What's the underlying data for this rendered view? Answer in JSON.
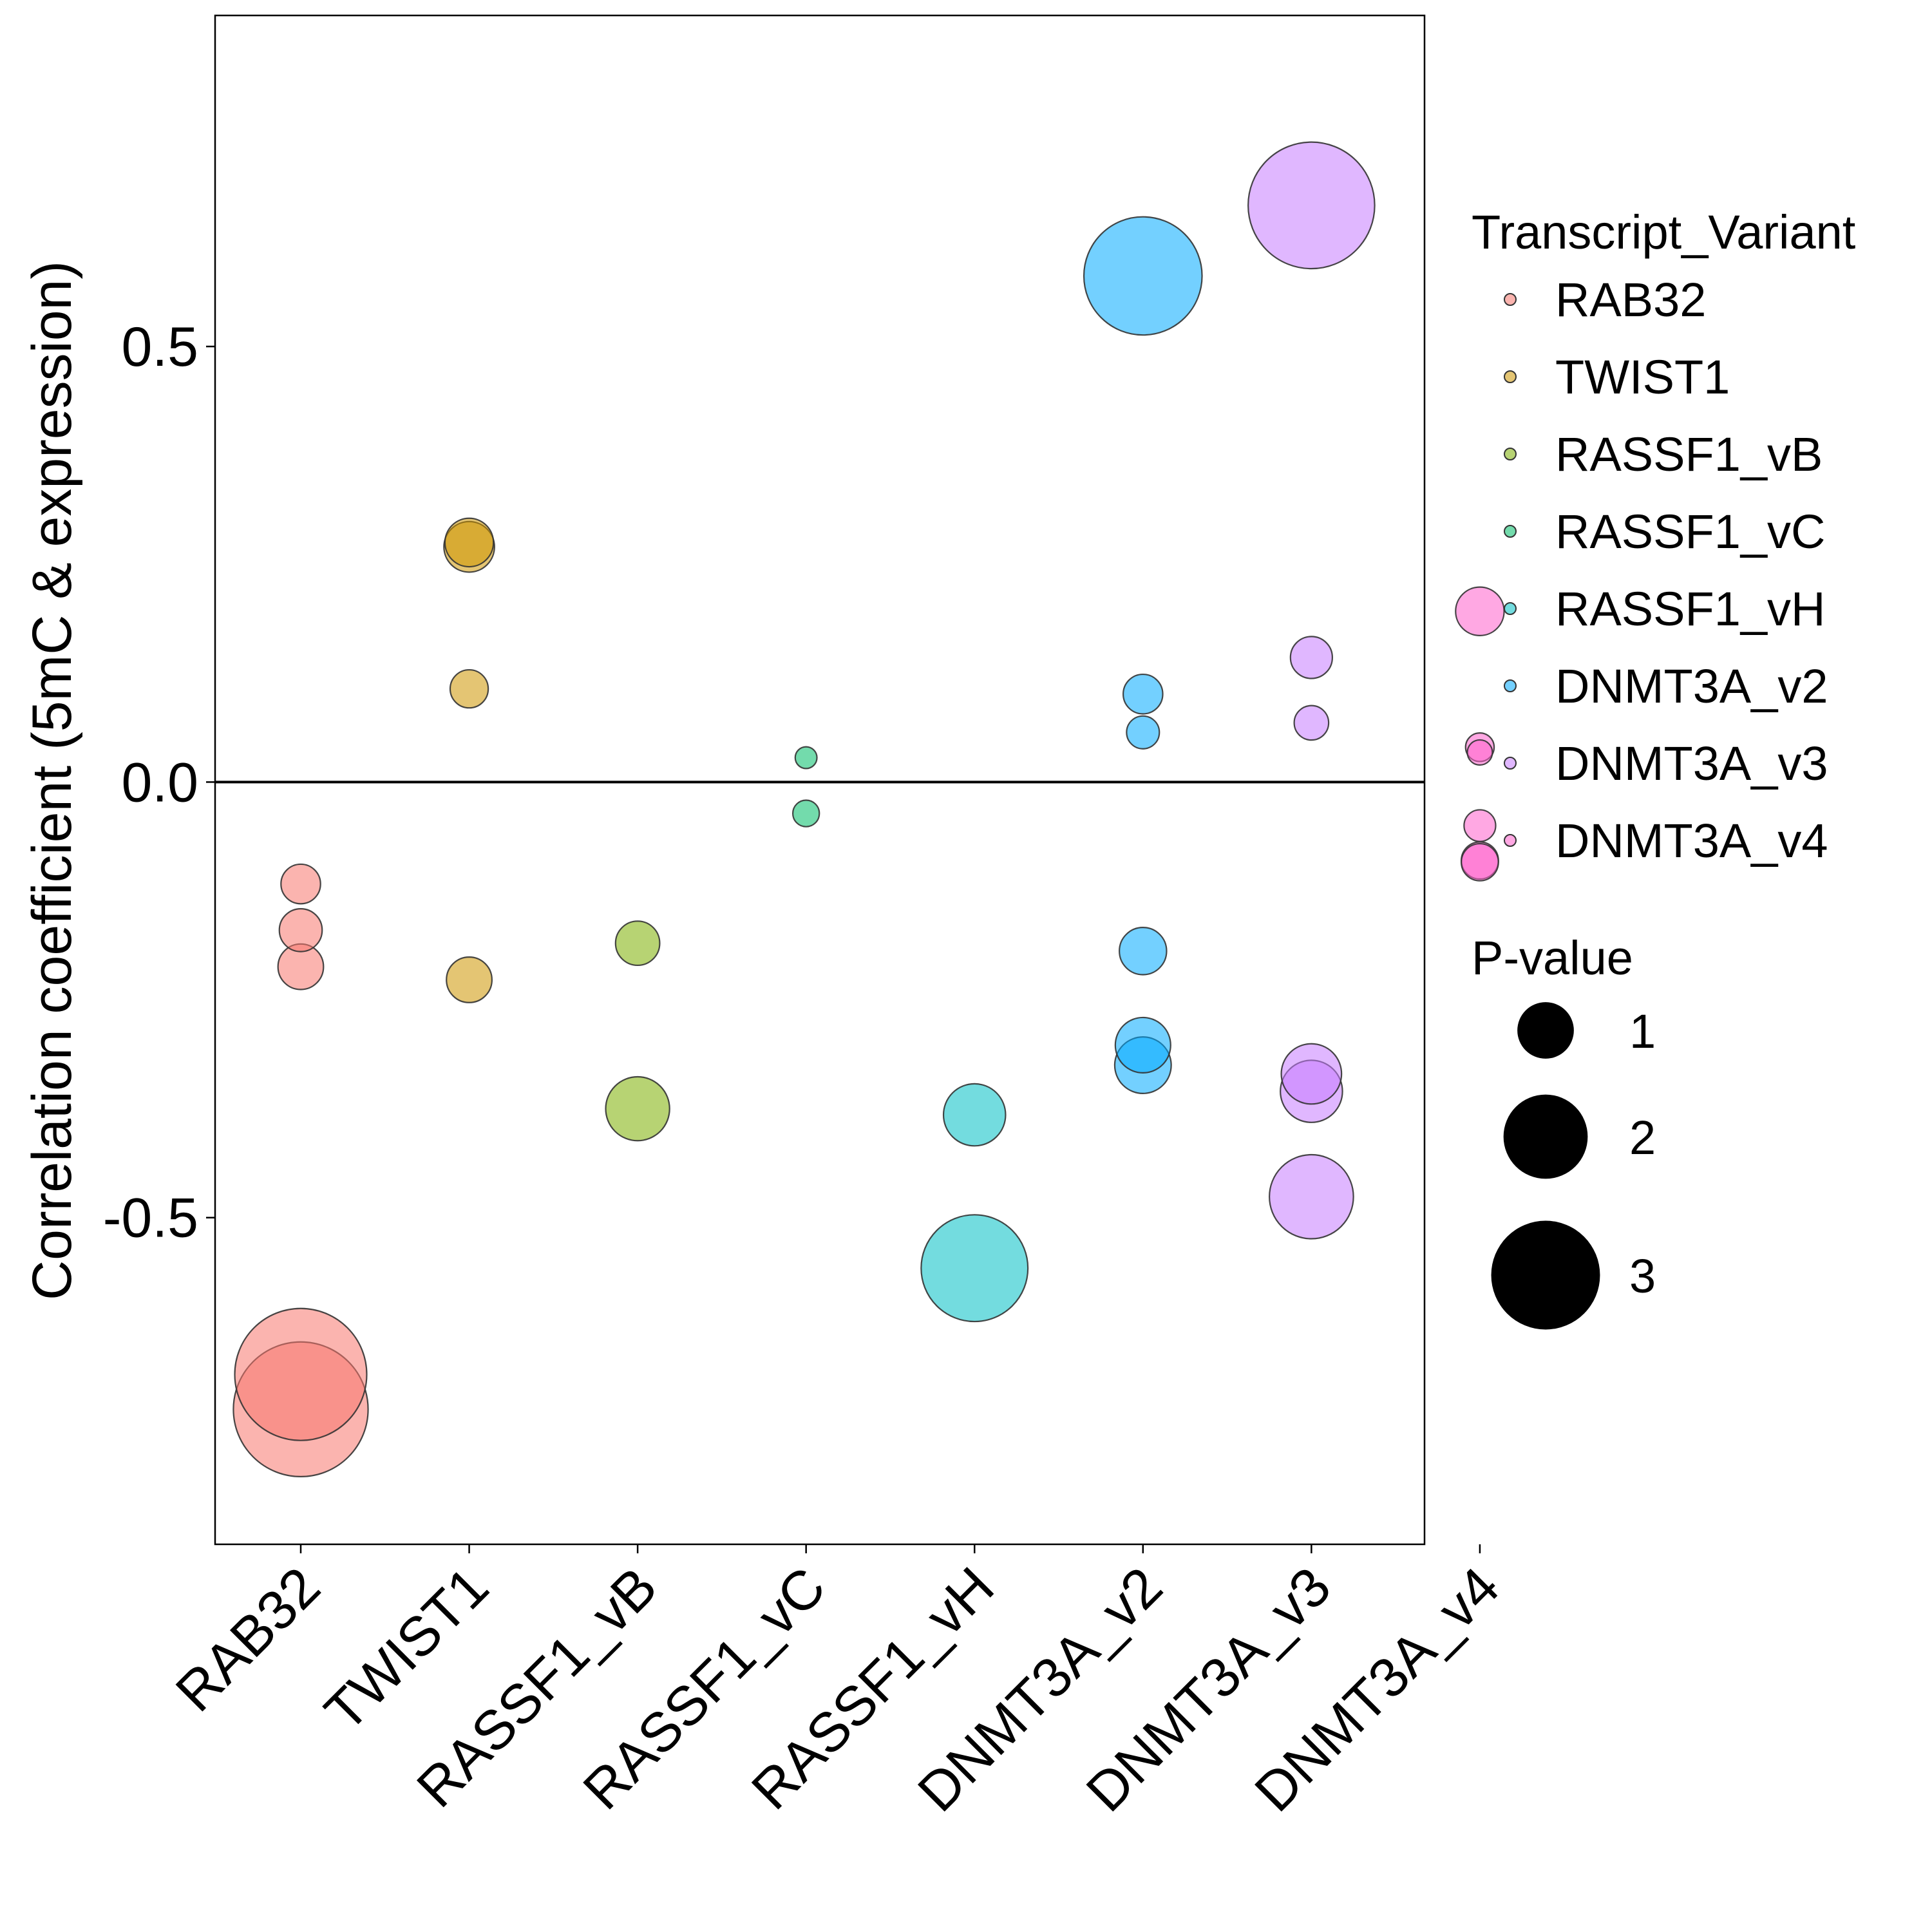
{
  "chart_data": {
    "type": "scatter",
    "ylabel": "Correlation coefficient (5mC & expression)",
    "xlabel": "",
    "ylim": [
      -0.875,
      0.88
    ],
    "y_ticks": [
      "0.5",
      "0.0",
      "-0.5"
    ],
    "y_tick_values": [
      0.5,
      0.0,
      -0.5
    ],
    "hline": 0.0,
    "categories": [
      "RAB32",
      "TWIST1",
      "RASSF1_vB",
      "RASSF1_vC",
      "RASSF1_vH",
      "DNMT3A_v2",
      "DNMT3A_v3",
      "DNMT3A_v4"
    ],
    "colors": {
      "RAB32": "#F8766D",
      "TWIST1": "#CD9600",
      "RASSF1_vB": "#7CAE00",
      "RASSF1_vC": "#00BE67",
      "RASSF1_vH": "#00BFC4",
      "DNMT3A_v2": "#00A9FF",
      "DNMT3A_v3": "#C77CFF",
      "DNMT3A_v4": "#FF61CC"
    },
    "points": [
      {
        "category": "RAB32",
        "y": -0.117,
        "p": 0.35
      },
      {
        "category": "RAB32",
        "y": -0.17,
        "p": 0.42
      },
      {
        "category": "RAB32",
        "y": -0.212,
        "p": 0.48
      },
      {
        "category": "RAB32",
        "y": -0.68,
        "p": 3.2
      },
      {
        "category": "RAB32",
        "y": -0.72,
        "p": 3.3
      },
      {
        "category": "TWIST1",
        "y": 0.27,
        "p": 0.6
      },
      {
        "category": "TWIST1",
        "y": 0.275,
        "p": 0.55
      },
      {
        "category": "TWIST1",
        "y": 0.107,
        "p": 0.32
      },
      {
        "category": "TWIST1",
        "y": -0.227,
        "p": 0.48
      },
      {
        "category": "RASSF1_vB",
        "y": -0.185,
        "p": 0.45
      },
      {
        "category": "RASSF1_vB",
        "y": -0.375,
        "p": 0.95
      },
      {
        "category": "RASSF1_vC",
        "y": 0.028,
        "p": 0.06
      },
      {
        "category": "RASSF1_vC",
        "y": -0.036,
        "p": 0.12
      },
      {
        "category": "RASSF1_vH",
        "y": -0.382,
        "p": 0.9
      },
      {
        "category": "RASSF1_vH",
        "y": -0.558,
        "p": 2.3
      },
      {
        "category": "DNMT3A_v2",
        "y": 0.581,
        "p": 2.7
      },
      {
        "category": "DNMT3A_v2",
        "y": 0.101,
        "p": 0.35
      },
      {
        "category": "DNMT3A_v2",
        "y": 0.057,
        "p": 0.22
      },
      {
        "category": "DNMT3A_v2",
        "y": -0.194,
        "p": 0.52
      },
      {
        "category": "DNMT3A_v2",
        "y": -0.302,
        "p": 0.72
      },
      {
        "category": "DNMT3A_v2",
        "y": -0.325,
        "p": 0.75
      },
      {
        "category": "DNMT3A_v3",
        "y": 0.662,
        "p": 3.0
      },
      {
        "category": "DNMT3A_v3",
        "y": 0.143,
        "p": 0.4
      },
      {
        "category": "DNMT3A_v3",
        "y": 0.068,
        "p": 0.25
      },
      {
        "category": "DNMT3A_v3",
        "y": -0.335,
        "p": 0.85
      },
      {
        "category": "DNMT3A_v3",
        "y": -0.355,
        "p": 0.9
      },
      {
        "category": "DNMT3A_v3",
        "y": -0.476,
        "p": 1.55
      },
      {
        "category": "DNMT3A_v4",
        "y": 0.196,
        "p": 0.55
      },
      {
        "category": "DNMT3A_v4",
        "y": 0.04,
        "p": 0.15
      },
      {
        "category": "DNMT3A_v4",
        "y": 0.034,
        "p": 0.1
      },
      {
        "category": "DNMT3A_v4",
        "y": -0.05,
        "p": 0.2
      },
      {
        "category": "DNMT3A_v4",
        "y": -0.09,
        "p": 0.3
      },
      {
        "category": "DNMT3A_v4",
        "y": -0.092,
        "p": 0.3
      }
    ],
    "legend": {
      "color_title": "Transcript_Variant",
      "color_items": [
        "RAB32",
        "TWIST1",
        "RASSF1_vB",
        "RASSF1_vC",
        "RASSF1_vH",
        "DNMT3A_v2",
        "DNMT3A_v3",
        "DNMT3A_v4"
      ],
      "size_title": "P-value",
      "size_items": [
        {
          "label": "1",
          "value": 1
        },
        {
          "label": "2",
          "value": 2
        },
        {
          "label": "3",
          "value": 3
        }
      ],
      "placement": "right"
    },
    "grid": false
  }
}
